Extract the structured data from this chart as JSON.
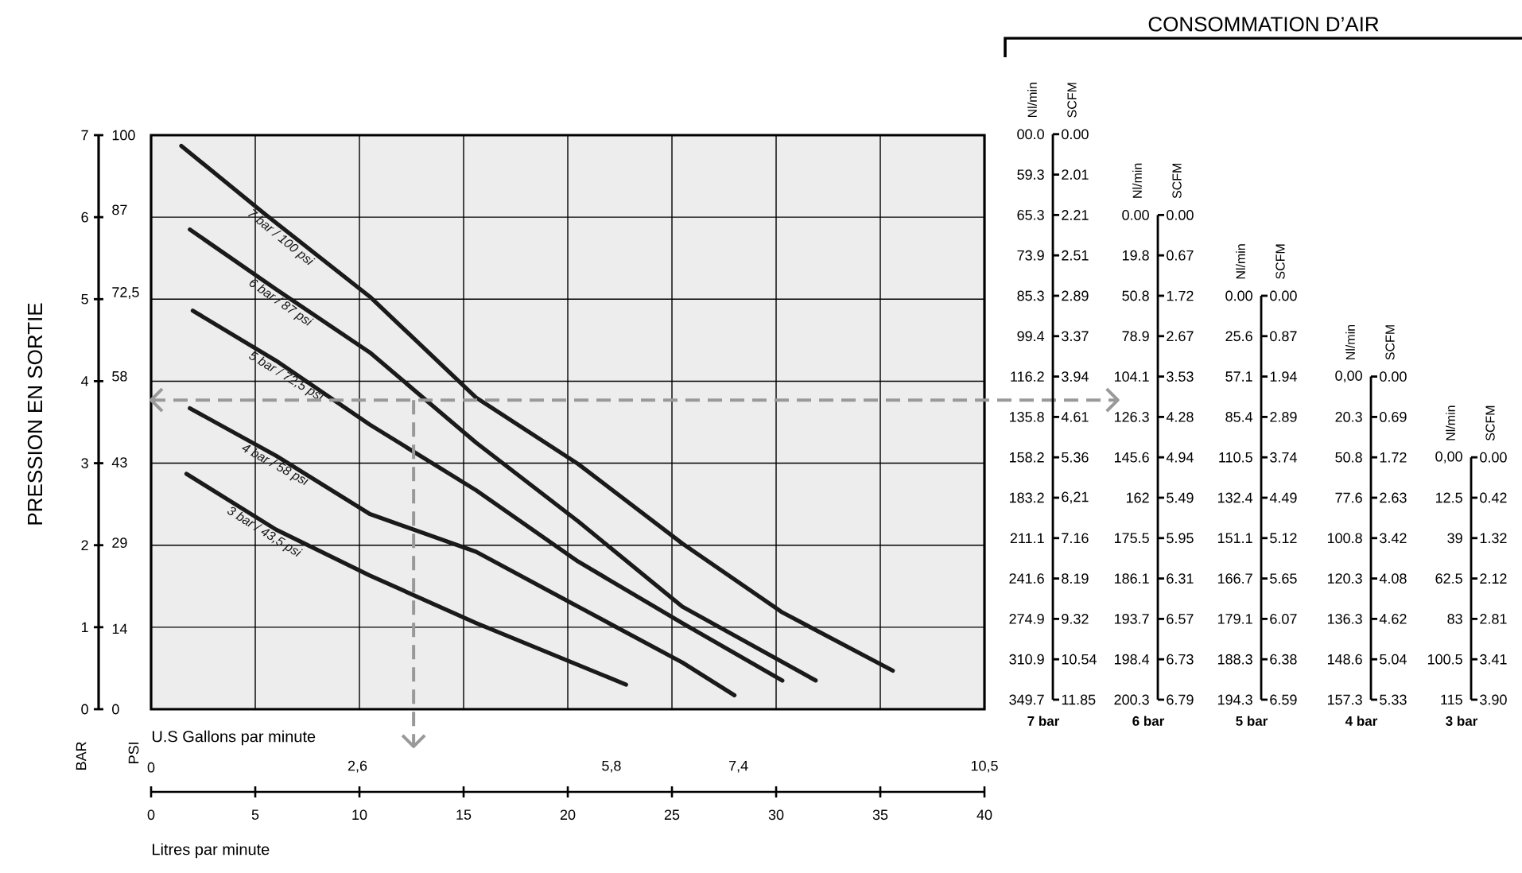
{
  "chart_data": [
    {
      "type": "line",
      "ylabel": "PRESSION EN SORTIE",
      "y2label": "PSI",
      "xlabel": "Litres par minute",
      "x2label": "U.S Gallons par minute",
      "annotations": [
        "BAR"
      ],
      "xlim": [
        0,
        40
      ],
      "xticks": [
        0,
        5,
        10,
        15,
        20,
        25,
        30,
        35,
        40
      ],
      "x2lim": [
        0,
        10.5
      ],
      "x2ticks": [
        0,
        {
          "value": 2.6,
          "label": "2,6"
        },
        {
          "value": 5.8,
          "label": "5,8"
        },
        {
          "value": 7.4,
          "label": "7,4"
        },
        {
          "value": 10.5,
          "label": "10,5"
        }
      ],
      "ylim": [
        0,
        7
      ],
      "yticks": [
        0,
        1,
        2,
        3,
        4,
        5,
        6,
        7
      ],
      "y2lim": [
        0,
        100
      ],
      "y2ticks": [
        0,
        14,
        29,
        43,
        58,
        {
          "value": 72.5,
          "label": "72,5"
        },
        87,
        100
      ],
      "grid": true,
      "series": [
        {
          "name": "7 bar / 100 psi",
          "color": "#1a1a1a",
          "x": [
            1.45,
            5.5,
            10.5,
            15.6,
            20.5,
            25.5,
            30.3,
            35.6
          ],
          "values": [
            6.87,
            6.03,
            5.03,
            3.8,
            2.99,
            2.02,
            1.18,
            0.47
          ]
        },
        {
          "name": "6 bar / 87 psi",
          "color": "#1a1a1a",
          "x": [
            1.86,
            6.0,
            10.5,
            15.6,
            20.5,
            25.5,
            31.9
          ],
          "values": [
            5.85,
            5.12,
            4.35,
            3.25,
            2.29,
            1.25,
            0.35
          ]
        },
        {
          "name": "5 bar / 72,5 psi",
          "color": "#1a1a1a",
          "x": [
            2.0,
            6.0,
            10.5,
            15.6,
            20.5,
            25.5,
            30.3
          ],
          "values": [
            4.86,
            4.25,
            3.47,
            2.67,
            1.8,
            1.05,
            0.35
          ]
        },
        {
          "name": "4 bar / 58 psi",
          "color": "#1a1a1a",
          "x": [
            1.86,
            6.0,
            10.5,
            15.6,
            20.5,
            25.5,
            28.0
          ],
          "values": [
            3.67,
            3.09,
            2.38,
            1.92,
            1.25,
            0.57,
            0.17
          ]
        },
        {
          "name": "3 bar / 43,5 psi",
          "color": "#1a1a1a",
          "x": [
            1.7,
            6.0,
            10.5,
            15.6,
            22.8
          ],
          "values": [
            2.87,
            2.19,
            1.63,
            1.05,
            0.3
          ]
        }
      ],
      "ref_lines": [
        {
          "axis": "y",
          "value": 3.77,
          "color": "#999999",
          "line_style": "dashed"
        },
        {
          "axis": "x",
          "value": 12.6,
          "color": "#999999",
          "line_style": "dashed"
        }
      ]
    },
    {
      "type": "other",
      "title": "CONSOMMATION D’AIR",
      "ylabel": "Nl/min",
      "y2label": "SCFM",
      "xlabel": "7 bar",
      "categories": [
        "00.0",
        "59.3",
        "65.3",
        "73.9",
        "85.3",
        "99.4",
        "116.2",
        "135.8",
        "158.2",
        "183.2",
        "211.1",
        "241.6",
        "274.9",
        "310.9",
        "349.7"
      ],
      "value_labels": [
        "0.00",
        "2.01",
        "2.21",
        "2.51",
        "2.89",
        "3.37",
        "3.94",
        "4.61",
        "5.36",
        "6,21",
        "7.16",
        "8.19",
        "9.32",
        "10.54",
        "11.85"
      ]
    },
    {
      "type": "other",
      "ylabel": "Nl/min",
      "y2label": "SCFM",
      "xlabel": "6 bar",
      "categories": [
        "0.00",
        "19.8",
        "50.8",
        "78.9",
        "104.1",
        "126.3",
        "145.6",
        "162",
        "175.5",
        "186.1",
        "193.7",
        "198.4",
        "200.3"
      ],
      "value_labels": [
        "0.00",
        "0.67",
        "1.72",
        "2.67",
        "3.53",
        "4.28",
        "4.94",
        "5.49",
        "5.95",
        "6.31",
        "6.57",
        "6.73",
        "6.79"
      ]
    },
    {
      "type": "other",
      "ylabel": "Nl/min",
      "y2label": "SCFM",
      "xlabel": "5 bar",
      "categories": [
        "0.00",
        "25.6",
        "57.1",
        "85.4",
        "110.5",
        "132.4",
        "151.1",
        "166.7",
        "179.1",
        "188.3",
        "194.3"
      ],
      "value_labels": [
        "0.00",
        "0.87",
        "1.94",
        "2.89",
        "3.74",
        "4.49",
        "5.12",
        "5.65",
        "6.07",
        "6.38",
        "6.59"
      ]
    },
    {
      "type": "other",
      "ylabel": "Nl/min",
      "y2label": "SCFM",
      "xlabel": "4 bar",
      "categories": [
        "0,00",
        "20.3",
        "50.8",
        "77.6",
        "100.8",
        "120.3",
        "136.3",
        "148.6",
        "157.3"
      ],
      "value_labels": [
        "0.00",
        "0.69",
        "1.72",
        "2.63",
        "3.42",
        "4.08",
        "4.62",
        "5.04",
        "5.33"
      ]
    },
    {
      "type": "other",
      "ylabel": "Nl/min",
      "y2label": "SCFM",
      "xlabel": "3 bar",
      "categories": [
        "0,00",
        "12.5",
        "39",
        "62.5",
        "83",
        "100.5",
        "115"
      ],
      "value_labels": [
        "0.00",
        "0.42",
        "1.32",
        "2.12",
        "2.81",
        "3.41",
        "3.90"
      ]
    }
  ]
}
